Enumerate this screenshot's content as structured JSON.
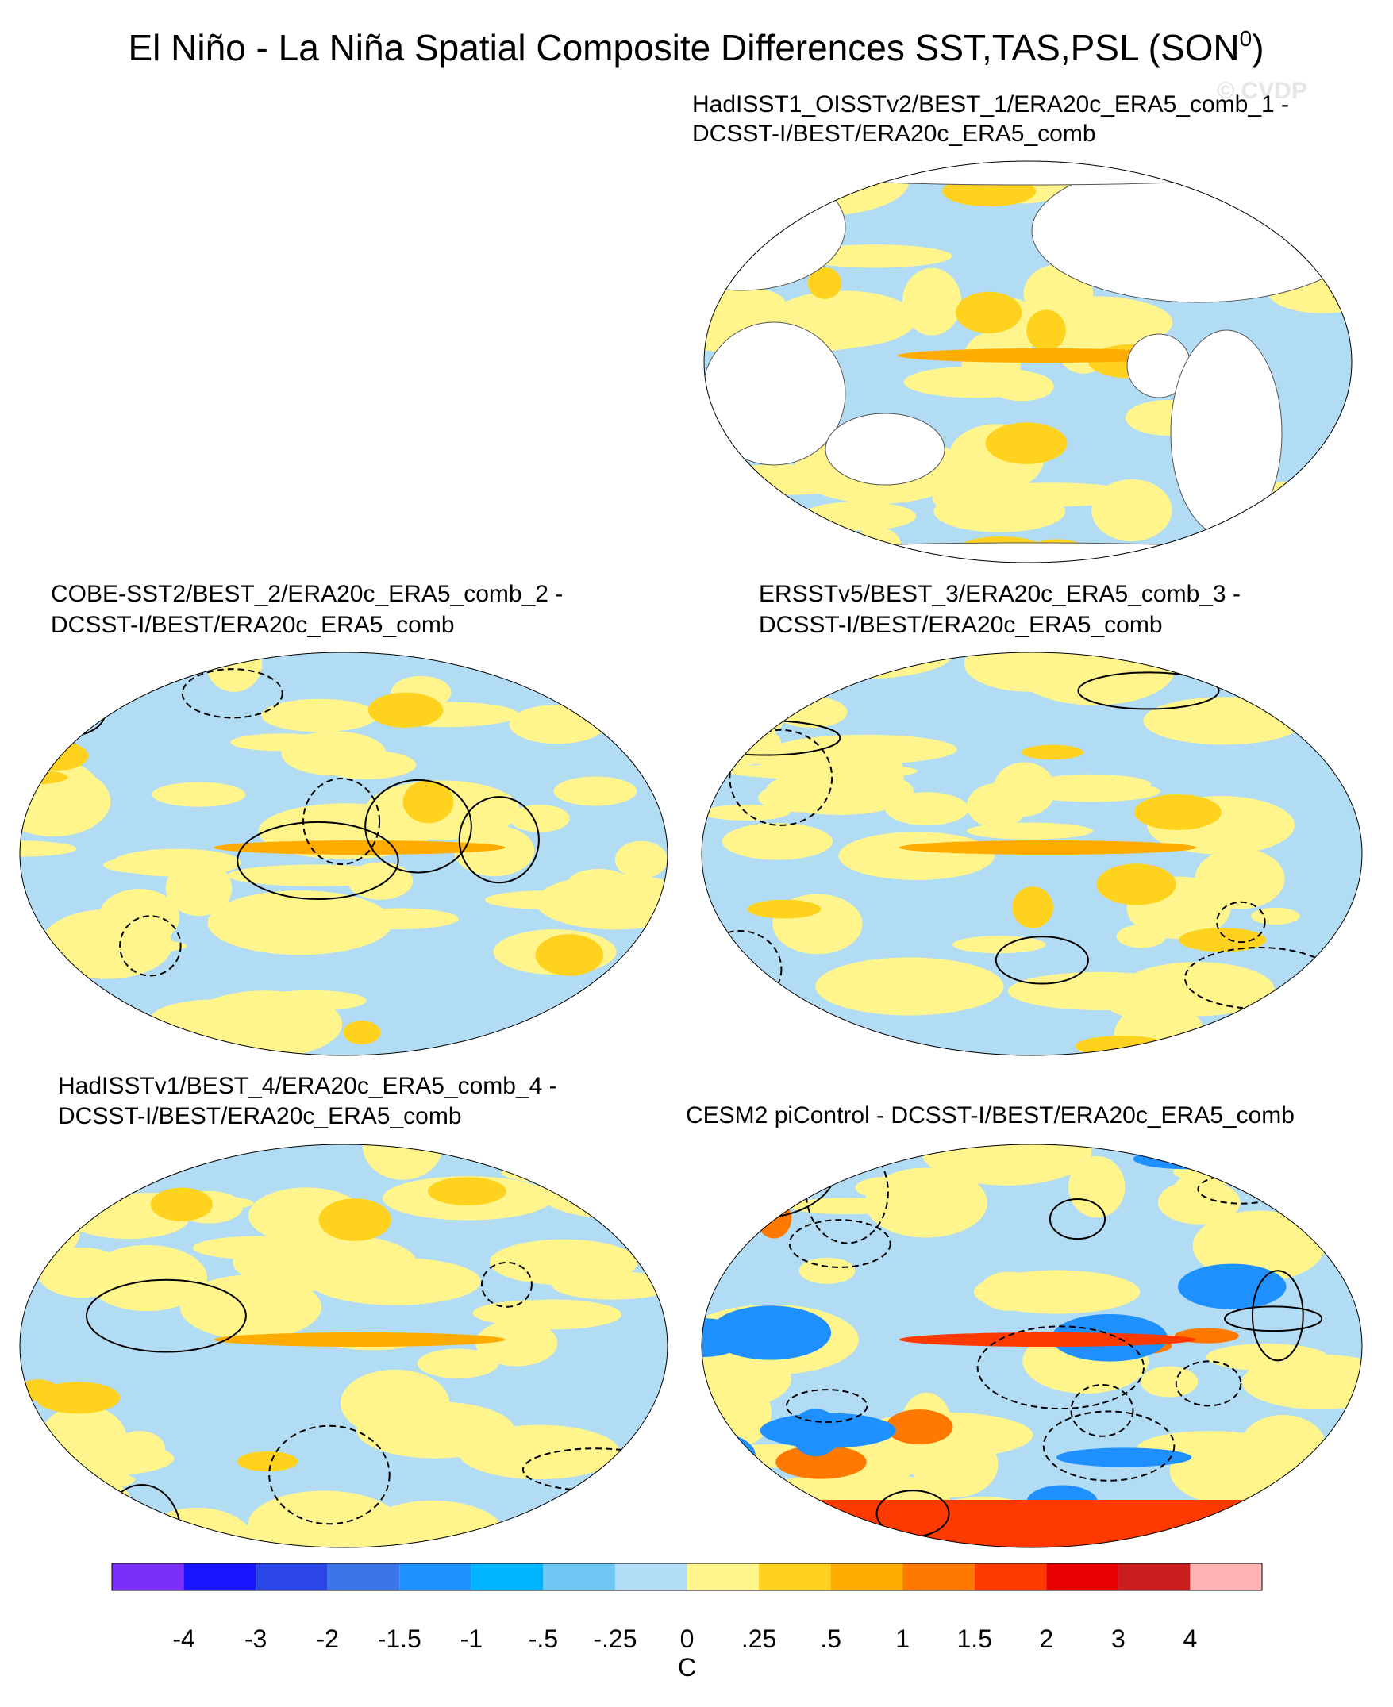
{
  "title": {
    "main": "El Niño - La Niña Spatial Composite Differences SST,TAS,PSL (SON",
    "sup": "0",
    "end": ")"
  },
  "watermark": "© CVDP",
  "panels": [
    {
      "title": [
        "HadISST1_OISSTv2/BEST_1/ERA20c_ERA5_comb_1 -",
        "DCSST-I/BEST/ERA20c_ERA5_comb"
      ]
    },
    {
      "title": [
        "COBE-SST2/BEST_2/ERA20c_ERA5_comb_2 -",
        "DCSST-I/BEST/ERA20c_ERA5_comb"
      ]
    },
    {
      "title": [
        "ERSSTv5/BEST_3/ERA20c_ERA5_comb_3 -",
        "DCSST-I/BEST/ERA20c_ERA5_comb"
      ]
    },
    {
      "title": [
        "HadISSTv1/BEST_4/ERA20c_ERA5_comb_4 -",
        "DCSST-I/BEST/ERA20c_ERA5_comb"
      ]
    },
    {
      "title": [
        "CESM2 piControl - DCSST-I/BEST/ERA20c_ERA5_comb"
      ]
    }
  ],
  "colorbar": {
    "colors": [
      "#7b2ff7",
      "#1a14ff",
      "#2a46e6",
      "#3a76e8",
      "#1e90ff",
      "#00b4ff",
      "#6ec6f2",
      "#b2dcf3",
      "#fff58c",
      "#ffd21f",
      "#ffab00",
      "#ff7800",
      "#ff3a00",
      "#e60000",
      "#c81e1e",
      "#ffb2b2"
    ],
    "labels": [
      "-4",
      "-3",
      "-2",
      "-1.5",
      "-1",
      "-.5",
      "-.25",
      "0",
      ".25",
      ".5",
      "1",
      "1.5",
      "2",
      "3",
      "4"
    ],
    "unit": "C"
  }
}
